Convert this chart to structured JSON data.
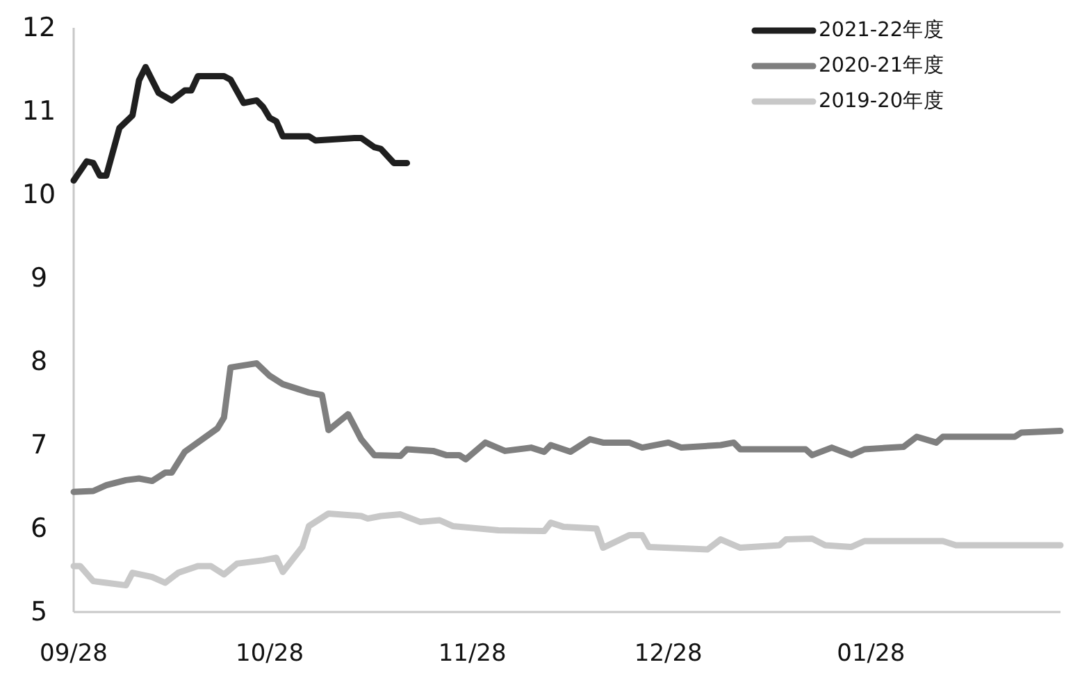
{
  "chart_data": {
    "type": "line",
    "xlim": [
      "2021-09-28",
      "2022-02-26"
    ],
    "xticks": [
      {
        "value": "2021-09-28",
        "label": "09/28"
      },
      {
        "value": "2021-10-28",
        "label": "10/28"
      },
      {
        "value": "2021-11-28",
        "label": "11/28"
      },
      {
        "value": "2021-12-28",
        "label": "12/28"
      },
      {
        "value": "2022-01-28",
        "label": "01/28"
      }
    ],
    "ylim": [
      5,
      12
    ],
    "yticks": [
      5,
      6,
      7,
      8,
      9,
      10,
      11,
      12
    ],
    "grid": false,
    "legend": "top right",
    "series": [
      {
        "name": "2021-22年度",
        "color": "#1f1f1f",
        "x": [
          "2021-09-28",
          "2021-09-30",
          "2021-10-01",
          "2021-10-02",
          "2021-10-03",
          "2021-10-05",
          "2021-10-07",
          "2021-10-08",
          "2021-10-09",
          "2021-10-11",
          "2021-10-13",
          "2021-10-15",
          "2021-10-16",
          "2021-10-17",
          "2021-10-21",
          "2021-10-22",
          "2021-10-24",
          "2021-10-26",
          "2021-10-27",
          "2021-10-28",
          "2021-10-29",
          "2021-10-30",
          "2021-11-03",
          "2021-11-04",
          "2021-11-10",
          "2021-11-11",
          "2021-11-13",
          "2021-11-14",
          "2021-11-16",
          "2021-11-18"
        ],
        "values": [
          10.17,
          10.4,
          10.38,
          10.23,
          10.23,
          10.8,
          10.95,
          11.37,
          11.53,
          11.22,
          11.13,
          11.25,
          11.25,
          11.42,
          11.42,
          11.38,
          11.1,
          11.13,
          11.05,
          10.92,
          10.88,
          10.7,
          10.7,
          10.65,
          10.68,
          10.68,
          10.57,
          10.55,
          10.38,
          10.38
        ]
      },
      {
        "name": "2020-21年度",
        "color": "#7f7f7f",
        "x": [
          "2021-09-28",
          "2021-10-01",
          "2021-10-03",
          "2021-10-06",
          "2021-10-08",
          "2021-10-10",
          "2021-10-12",
          "2021-10-13",
          "2021-10-15",
          "2021-10-20",
          "2021-10-21",
          "2021-10-22",
          "2021-10-26",
          "2021-10-28",
          "2021-10-30",
          "2021-11-03",
          "2021-11-05",
          "2021-11-06",
          "2021-11-09",
          "2021-11-11",
          "2021-11-13",
          "2021-11-17",
          "2021-11-18",
          "2021-11-22",
          "2021-11-24",
          "2021-11-26",
          "2021-11-27",
          "2021-11-30",
          "2021-12-03",
          "2021-12-07",
          "2021-12-09",
          "2021-12-10",
          "2021-12-13",
          "2021-12-16",
          "2021-12-18",
          "2021-12-22",
          "2021-12-24",
          "2021-12-28",
          "2021-12-30",
          "2022-01-05",
          "2022-01-07",
          "2022-01-08",
          "2022-01-18",
          "2022-01-19",
          "2022-01-22",
          "2022-01-25",
          "2022-01-27",
          "2022-02-02",
          "2022-02-04",
          "2022-02-07",
          "2022-02-08",
          "2022-02-19",
          "2022-02-20",
          "2022-02-26"
        ],
        "values": [
          6.44,
          6.45,
          6.52,
          6.58,
          6.6,
          6.57,
          6.67,
          6.67,
          6.92,
          7.2,
          7.33,
          7.93,
          7.98,
          7.83,
          7.73,
          7.63,
          7.6,
          7.18,
          7.37,
          7.07,
          6.88,
          6.87,
          6.95,
          6.93,
          6.88,
          6.88,
          6.83,
          7.03,
          6.93,
          6.97,
          6.92,
          7.0,
          6.92,
          7.07,
          7.03,
          7.03,
          6.97,
          7.03,
          6.97,
          7.0,
          7.03,
          6.95,
          6.95,
          6.88,
          6.97,
          6.88,
          6.95,
          6.98,
          7.1,
          7.03,
          7.1,
          7.1,
          7.15,
          7.17
        ]
      },
      {
        "name": "2019-20年度",
        "color": "#c8c8c8",
        "x": [
          "2021-09-28",
          "2021-09-29",
          "2021-10-01",
          "2021-10-03",
          "2021-10-06",
          "2021-10-07",
          "2021-10-10",
          "2021-10-12",
          "2021-10-14",
          "2021-10-17",
          "2021-10-19",
          "2021-10-21",
          "2021-10-23",
          "2021-10-27",
          "2021-10-29",
          "2021-10-30",
          "2021-11-02",
          "2021-11-03",
          "2021-11-06",
          "2021-11-11",
          "2021-11-12",
          "2021-11-14",
          "2021-11-17",
          "2021-11-20",
          "2021-11-23",
          "2021-11-25",
          "2021-12-02",
          "2021-12-09",
          "2021-12-10",
          "2021-12-12",
          "2021-12-17",
          "2021-12-18",
          "2021-12-22",
          "2021-12-24",
          "2021-12-25",
          "2022-01-03",
          "2022-01-05",
          "2022-01-08",
          "2022-01-14",
          "2022-01-15",
          "2022-01-19",
          "2022-01-21",
          "2022-01-25",
          "2022-01-27",
          "2022-02-08",
          "2022-02-10",
          "2022-02-26"
        ],
        "values": [
          5.55,
          5.55,
          5.37,
          5.35,
          5.32,
          5.47,
          5.42,
          5.35,
          5.47,
          5.55,
          5.55,
          5.45,
          5.58,
          5.62,
          5.65,
          5.48,
          5.78,
          6.03,
          6.18,
          6.15,
          6.12,
          6.15,
          6.17,
          6.08,
          6.1,
          6.03,
          5.98,
          5.97,
          6.07,
          6.02,
          6.0,
          5.77,
          5.92,
          5.92,
          5.78,
          5.75,
          5.87,
          5.77,
          5.8,
          5.87,
          5.88,
          5.8,
          5.78,
          5.85,
          5.85,
          5.8,
          5.8
        ]
      }
    ]
  }
}
